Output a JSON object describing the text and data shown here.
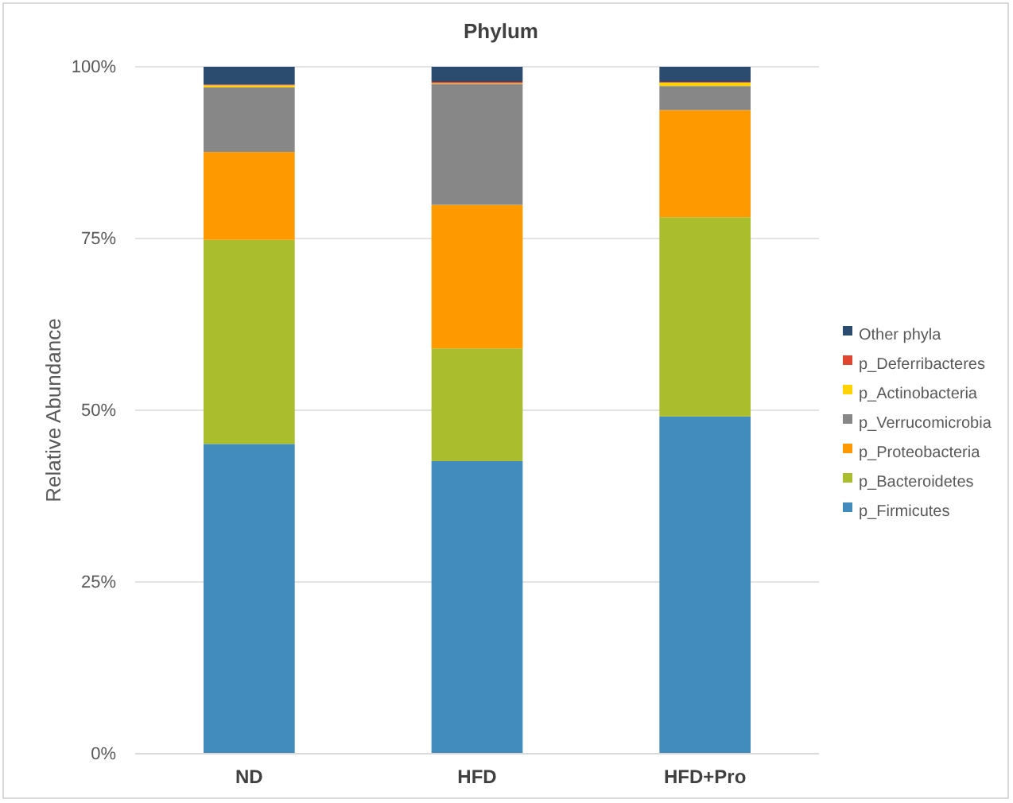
{
  "chart_data": {
    "type": "bar",
    "title": "Phylum",
    "ylabel": "Relative Abundance",
    "categories": [
      "ND",
      "HFD",
      "HFD+Pro"
    ],
    "stacked": true,
    "grid": "y",
    "legend": "right",
    "ylim": [
      0,
      100
    ],
    "yticks": [
      {
        "value": 0,
        "label": "0%"
      },
      {
        "value": 25,
        "label": "25%"
      },
      {
        "value": 50,
        "label": "50%"
      },
      {
        "value": 75,
        "label": "75%"
      },
      {
        "value": 100,
        "label": "100%"
      }
    ],
    "series": [
      {
        "name": "p_Firmicutes",
        "color": "#418cbc",
        "values": [
          45.1,
          42.6,
          49.1
        ]
      },
      {
        "name": "p_Bacteroidetes",
        "color": "#aabd2c",
        "values": [
          29.7,
          16.4,
          29.0
        ]
      },
      {
        "name": "p_Proteobacteria",
        "color": "#ff9900",
        "values": [
          12.8,
          20.9,
          15.6
        ]
      },
      {
        "name": "p_Verrucomicrobia",
        "color": "#878787",
        "values": [
          9.4,
          17.6,
          3.5
        ]
      },
      {
        "name": "p_Actinobacteria",
        "color": "#ffd200",
        "values": [
          0.3,
          0.1,
          0.5
        ]
      },
      {
        "name": "p_Deferribacteres",
        "color": "#e0452f",
        "values": [
          0.1,
          0.2,
          0.1
        ]
      },
      {
        "name": "Other phyla",
        "color": "#2b4c6f",
        "values": [
          2.6,
          2.2,
          2.2
        ]
      }
    ]
  }
}
